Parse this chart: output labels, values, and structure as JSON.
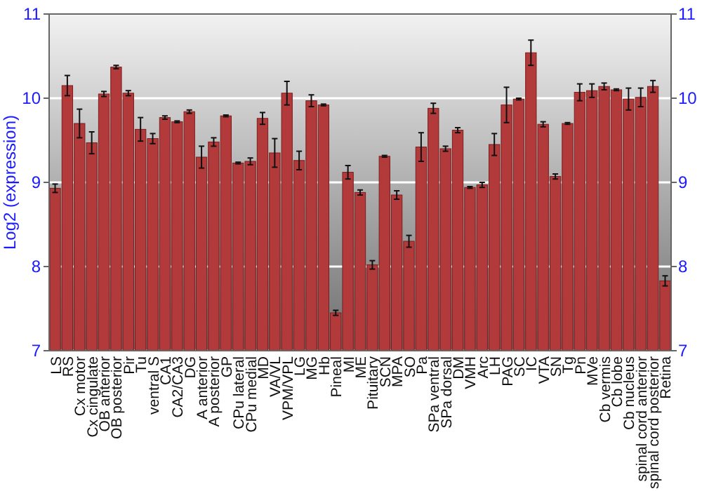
{
  "chart_data": {
    "type": "bar",
    "ylabel": "Log2 (expression)",
    "categories": [
      "LS",
      "RS",
      "Cx motor",
      "Cx cingulate",
      "OB anterior",
      "OB posterior",
      "Pir",
      "Tu",
      "ventral S",
      "CA1",
      "CA2/CA3",
      "DG",
      "A anterior",
      "A posterior",
      "GP",
      "CPu lateral",
      "CPu medial",
      "MD",
      "VA/VL",
      "VPM/VPL",
      "LG",
      "MG",
      "Hb",
      "Pineal",
      "MI",
      "ME",
      "Pituitary",
      "SCN",
      "MPA",
      "SO",
      "Pa",
      "SPa ventral",
      "SPa dorsal",
      "DM",
      "VMH",
      "Arc",
      "LH",
      "PAG",
      "SC",
      "IC",
      "VTA",
      "SN",
      "Tg",
      "Pn",
      "MVe",
      "Cb vermis",
      "Cb lobe",
      "Cb nucleus",
      "spinal cord anterior",
      "spinal cord posterior",
      "Retina"
    ],
    "values": [
      8.93,
      10.15,
      9.7,
      9.47,
      10.05,
      10.37,
      10.06,
      9.63,
      9.52,
      9.77,
      9.72,
      9.84,
      9.3,
      9.48,
      9.79,
      9.23,
      9.25,
      9.76,
      9.35,
      10.06,
      9.26,
      9.97,
      9.92,
      7.45,
      9.12,
      8.88,
      8.02,
      9.31,
      8.85,
      8.3,
      9.42,
      9.88,
      9.4,
      9.62,
      8.94,
      8.97,
      9.45,
      9.92,
      9.99,
      10.54,
      9.69,
      9.07,
      9.7,
      10.07,
      10.09,
      10.14,
      10.1,
      9.99,
      10.01,
      10.14,
      7.83
    ],
    "errors": [
      0.05,
      0.12,
      0.17,
      0.13,
      0.03,
      0.02,
      0.03,
      0.14,
      0.06,
      0.02,
      0.01,
      0.02,
      0.13,
      0.05,
      0.01,
      0.01,
      0.04,
      0.07,
      0.17,
      0.14,
      0.11,
      0.07,
      0.01,
      0.03,
      0.08,
      0.03,
      0.05,
      0.01,
      0.05,
      0.07,
      0.17,
      0.06,
      0.03,
      0.03,
      0.01,
      0.03,
      0.13,
      0.21,
      0.01,
      0.15,
      0.03,
      0.03,
      0.01,
      0.1,
      0.08,
      0.04,
      0.01,
      0.13,
      0.11,
      0.07,
      0.06
    ],
    "color": "#b33a3a",
    "ylim": [
      7,
      11
    ],
    "yticks": [
      7,
      8,
      9,
      10,
      11
    ],
    "y2lim": [
      7,
      11
    ],
    "y2ticks": [
      7,
      8,
      9,
      10,
      11
    ],
    "grid": "y"
  }
}
